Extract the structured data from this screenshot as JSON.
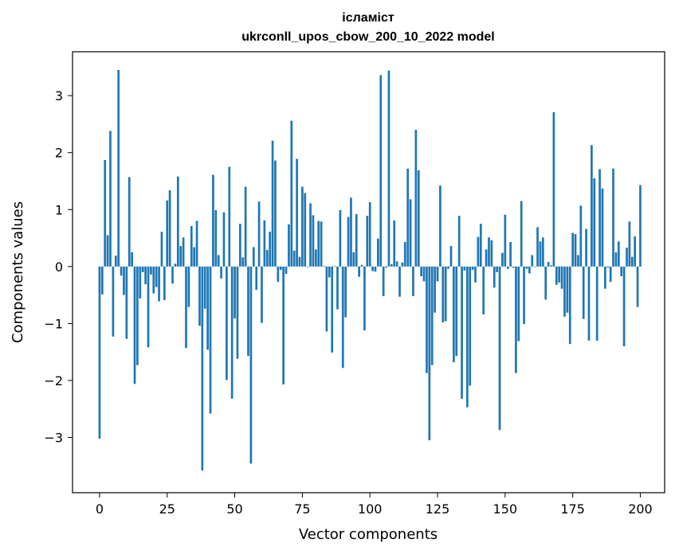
{
  "chart_data": {
    "type": "bar",
    "title_line1": "ісламіст",
    "title_line2": "ukrconll_upos_cbow_200_10_2022 model",
    "xlabel": "Vector components",
    "ylabel": "Components values",
    "xlim": [
      -10,
      209
    ],
    "ylim": [
      -3.97,
      3.77
    ],
    "xticks": [
      0,
      25,
      50,
      75,
      100,
      125,
      150,
      175,
      200
    ],
    "yticks": [
      -3,
      -2,
      -1,
      0,
      1,
      2,
      3
    ],
    "ytick_labels": [
      "−3",
      "−2",
      "−1",
      "0",
      "1",
      "2",
      "3"
    ],
    "bar_color": "#1f77b4",
    "values": [
      -3.02,
      -0.49,
      1.87,
      0.55,
      2.38,
      -1.23,
      0.19,
      3.45,
      -0.16,
      -0.5,
      -1.27,
      1.57,
      0.25,
      -2.06,
      -1.73,
      -0.56,
      -0.1,
      -0.31,
      -1.42,
      -0.14,
      -0.47,
      -0.36,
      -0.61,
      0.61,
      -0.59,
      1.16,
      1.34,
      -0.3,
      0.05,
      1.58,
      0.36,
      0.51,
      -1.43,
      -0.71,
      0.71,
      0.34,
      0.8,
      -1.04,
      -3.58,
      -0.74,
      -1.46,
      -2.58,
      1.61,
      0.99,
      0.2,
      -0.21,
      0.95,
      -1.99,
      1.75,
      -2.32,
      -0.91,
      -1.62,
      0.75,
      0.16,
      1.4,
      -1.57,
      -3.46,
      0.34,
      -0.41,
      1.14,
      -0.99,
      0.81,
      0.29,
      0.61,
      2.21,
      1.86,
      -0.27,
      -0.06,
      -2.07,
      -0.13,
      0.74,
      2.56,
      0.28,
      1.89,
      0.17,
      1.4,
      1.29,
      -0.01,
      1.11,
      0.9,
      0.3,
      0.8,
      0.79,
      0.01,
      -1.14,
      -0.19,
      -1.51,
      0.01,
      -0.75,
      0.99,
      -1.78,
      -0.89,
      0.87,
      1.21,
      0.25,
      0.92,
      -0.18,
      0.03,
      -1.12,
      0.89,
      1.13,
      -0.08,
      -0.09,
      0.49,
      3.36,
      -0.52,
      -0.02,
      3.44,
      0.04,
      0.81,
      0.09,
      -0.53,
      0.07,
      0.43,
      1.72,
      1.18,
      -0.52,
      2.4,
      1.69,
      -0.17,
      -0.26,
      -1.87,
      -3.05,
      -1.73,
      -0.81,
      -0.26,
      1.42,
      -0.98,
      -0.96,
      -0.04,
      0.36,
      -1.68,
      -1.57,
      0.89,
      -2.32,
      -0.07,
      -2.47,
      -2.09,
      -0.06,
      -0.28,
      0.52,
      0.75,
      -0.84,
      0.3,
      0.51,
      0.46,
      -0.37,
      -0.1,
      -2.87,
      0.24,
      0.91,
      -0.04,
      0.43,
      -0.02,
      -1.87,
      -1.31,
      1.15,
      -1.01,
      -0.04,
      -0.12,
      0.2,
      -0.01,
      0.69,
      0.44,
      0.51,
      -0.58,
      0.08,
      0.02,
      2.71,
      -0.32,
      -0.28,
      -0.39,
      -0.88,
      -0.81,
      -1.36,
      0.59,
      0.57,
      0.2,
      1.07,
      -0.92,
      0.66,
      -1.3,
      2.13,
      1.55,
      -1.3,
      1.71,
      1.37,
      -0.39,
      -0.02,
      -0.27,
      1.72,
      0.25,
      0.44,
      -0.17,
      -1.4,
      0.33,
      0.79,
      0.17,
      0.53,
      -0.71,
      1.43
    ]
  }
}
